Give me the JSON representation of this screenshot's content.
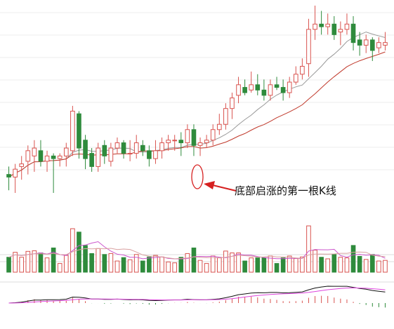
{
  "chart_data": [
    {
      "type": "candlestick",
      "panel": "price",
      "up_color": "#d9534f",
      "down_color": "#2e8b3c",
      "ylim": [
        0,
        100
      ],
      "grid": true,
      "series": [
        {
          "name": "",
          "color": "#999999",
          "values": [
            0
          ]
        },
        {
          "name": "",
          "color": "#c0392b",
          "values": [
            0
          ]
        }
      ],
      "annotation": {
        "text": "底部启涨的第一根K线",
        "marker": "ellipse",
        "arrow": true,
        "arrow_color": "#d62020"
      }
    },
    {
      "type": "bar",
      "panel": "volume",
      "up_color": "#d9534f",
      "down_color": "#2e8b3c",
      "ma_colors": [
        "#cc55cc",
        "#d9a0a0"
      ]
    },
    {
      "type": "bar",
      "panel": "macd",
      "pos_color": "#d9534f",
      "neg_color": "#2e8b3c",
      "line_colors": [
        "#111111",
        "#dd44dd"
      ]
    }
  ],
  "candles": [
    [
      67,
      66,
      70,
      61
    ],
    [
      66,
      69,
      71,
      60
    ],
    [
      70,
      71,
      74,
      65
    ],
    [
      72,
      76,
      78,
      67
    ],
    [
      74,
      77,
      80,
      68
    ],
    [
      76,
      72,
      80,
      70
    ],
    [
      72,
      74,
      76,
      68
    ],
    [
      74,
      73,
      75,
      60
    ],
    [
      73,
      74,
      75,
      70
    ],
    [
      74,
      77,
      79,
      70
    ],
    [
      76,
      91,
      93,
      74
    ],
    [
      90,
      77,
      91,
      73
    ],
    [
      80,
      73,
      82,
      69
    ],
    [
      75,
      70,
      77,
      68
    ],
    [
      70,
      77,
      79,
      68
    ],
    [
      78,
      74,
      80,
      71
    ],
    [
      72,
      77,
      79,
      70
    ],
    [
      77,
      79,
      81,
      75
    ],
    [
      79,
      75,
      80,
      73
    ],
    [
      75,
      75,
      80,
      72
    ],
    [
      75,
      79,
      82,
      73
    ],
    [
      78,
      76,
      80,
      74
    ],
    [
      76,
      73,
      78,
      70
    ],
    [
      73,
      76,
      80,
      71
    ],
    [
      76,
      79,
      81,
      73
    ],
    [
      79,
      80,
      82,
      76
    ],
    [
      80,
      80,
      82,
      76
    ],
    [
      80,
      79,
      83,
      74
    ],
    [
      79,
      84,
      86,
      77
    ],
    [
      84,
      78,
      86,
      74
    ],
    [
      78,
      79,
      81,
      74
    ],
    [
      79,
      80,
      82,
      77
    ],
    [
      80,
      84,
      86,
      78
    ],
    [
      84,
      86,
      90,
      82
    ],
    [
      86,
      92,
      94,
      84
    ],
    [
      92,
      96,
      98,
      88
    ],
    [
      97,
      101,
      104,
      94
    ],
    [
      100,
      98,
      103,
      97
    ],
    [
      99,
      101,
      106,
      98
    ],
    [
      101,
      99,
      105,
      97
    ],
    [
      99,
      97,
      103,
      95
    ],
    [
      97,
      101,
      103,
      95
    ],
    [
      101,
      100,
      104,
      99
    ],
    [
      100,
      98,
      103,
      95
    ],
    [
      98,
      102,
      104,
      96
    ],
    [
      102,
      105,
      108,
      101
    ],
    [
      105,
      108,
      111,
      103
    ],
    [
      109,
      122,
      126,
      104
    ],
    [
      122,
      124,
      131,
      118
    ],
    [
      124,
      123,
      129,
      120
    ],
    [
      123,
      124,
      128,
      120
    ],
    [
      124,
      120,
      127,
      118
    ],
    [
      121,
      122,
      125,
      116
    ],
    [
      122,
      124,
      128,
      120
    ],
    [
      124,
      117,
      127,
      114
    ],
    [
      118,
      116,
      121,
      112
    ],
    [
      116,
      118,
      120,
      113
    ],
    [
      118,
      114,
      119,
      110
    ],
    [
      115,
      117,
      119,
      113
    ],
    [
      116,
      117,
      121,
      114
    ]
  ]
}
